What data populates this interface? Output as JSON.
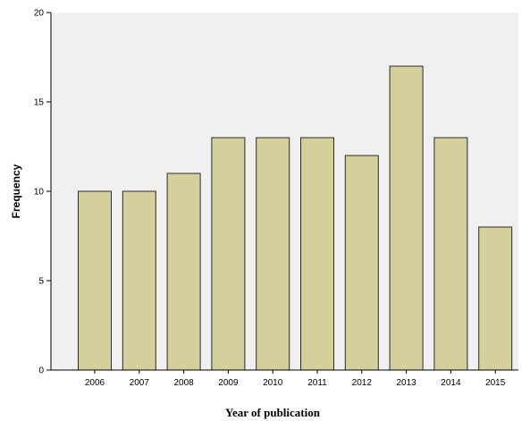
{
  "chart_data": {
    "type": "bar",
    "title": "",
    "xlabel": "Year of publication",
    "ylabel": "Frequency",
    "categories": [
      "2006",
      "2007",
      "2008",
      "2009",
      "2010",
      "2011",
      "2012",
      "2013",
      "2014",
      "2015"
    ],
    "values": [
      10,
      10,
      11,
      13,
      13,
      13,
      12,
      17,
      13,
      8
    ],
    "ylim": [
      0,
      20
    ],
    "yticks": [
      0,
      5,
      10,
      15,
      20
    ],
    "grid": false,
    "legend": "none",
    "colors": {
      "bar_fill": "#d4cf9c",
      "bar_stroke": "#2b2b2b",
      "plot_background": "#f0f0f0",
      "axis": "#000000"
    }
  }
}
